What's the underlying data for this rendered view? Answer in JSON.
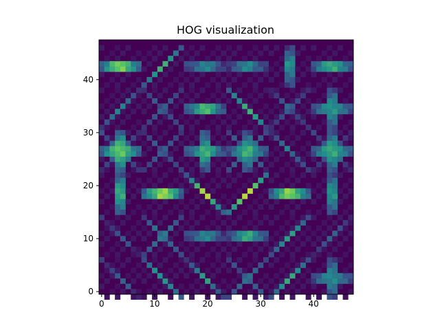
{
  "chart_data": {
    "type": "heatmap",
    "title": "HOG visualization",
    "xlabel": "",
    "ylabel": "",
    "grid": false,
    "colormap": "viridis",
    "background_color": "#440154",
    "rows": 48,
    "cols": 48,
    "x_ticks": [
      0,
      10,
      20,
      30,
      40
    ],
    "x_tick_labels": [
      "0",
      "10",
      "20",
      "30",
      "40"
    ],
    "y_ticks": [
      0,
      10,
      20,
      30,
      40
    ],
    "y_tick_labels": [
      "0",
      "10",
      "20",
      "30",
      "40"
    ],
    "xlim": [
      -0.5,
      47.5
    ],
    "ylim": [
      47.5,
      -0.5
    ],
    "cell_size": 8,
    "cells": [
      {
        "row": 0,
        "col": 0,
        "orientation": "diag-up",
        "strength": 0.25
      },
      {
        "row": 0,
        "col": 1,
        "orientation": "diag-up",
        "strength": 0.55
      },
      {
        "row": 0,
        "col": 2,
        "orientation": "diag-up",
        "strength": 0.5
      },
      {
        "row": 0,
        "col": 3,
        "orientation": "cross",
        "strength": 0.35
      },
      {
        "row": 0,
        "col": 4,
        "orientation": "diag-down",
        "strength": 0.6
      },
      {
        "row": 0,
        "col": 5,
        "orientation": "plus",
        "strength": 0.45
      },
      {
        "row": 1,
        "col": 0,
        "orientation": "diag-up",
        "strength": 0.2
      },
      {
        "row": 1,
        "col": 1,
        "orientation": "cross",
        "strength": 0.45
      },
      {
        "row": 1,
        "col": 2,
        "orientation": "horizontal",
        "strength": 0.4
      },
      {
        "row": 1,
        "col": 3,
        "orientation": "horizontal",
        "strength": 0.55
      },
      {
        "row": 1,
        "col": 4,
        "orientation": "diag-down",
        "strength": 0.55
      },
      {
        "row": 1,
        "col": 5,
        "orientation": "diag-down",
        "strength": 0.35
      },
      {
        "row": 2,
        "col": 0,
        "orientation": "vertical",
        "strength": 0.6
      },
      {
        "row": 2,
        "col": 1,
        "orientation": "horizontal",
        "strength": 0.85
      },
      {
        "row": 2,
        "col": 2,
        "orientation": "diag-up",
        "strength": 0.85
      },
      {
        "row": 2,
        "col": 3,
        "orientation": "diag-down",
        "strength": 0.85
      },
      {
        "row": 2,
        "col": 4,
        "orientation": "horizontal",
        "strength": 0.8
      },
      {
        "row": 2,
        "col": 5,
        "orientation": "vertical",
        "strength": 0.5
      },
      {
        "row": 3,
        "col": 0,
        "orientation": "star",
        "strength": 0.75
      },
      {
        "row": 3,
        "col": 1,
        "orientation": "cross",
        "strength": 0.3
      },
      {
        "row": 3,
        "col": 2,
        "orientation": "plus",
        "strength": 0.6
      },
      {
        "row": 3,
        "col": 3,
        "orientation": "star",
        "strength": 0.6
      },
      {
        "row": 3,
        "col": 4,
        "orientation": "diag-up",
        "strength": 0.35
      },
      {
        "row": 3,
        "col": 5,
        "orientation": "star",
        "strength": 0.6
      },
      {
        "row": 4,
        "col": 0,
        "orientation": "diag-down",
        "strength": 0.5
      },
      {
        "row": 4,
        "col": 1,
        "orientation": "cross",
        "strength": 0.3
      },
      {
        "row": 4,
        "col": 2,
        "orientation": "horizontal",
        "strength": 0.65
      },
      {
        "row": 4,
        "col": 3,
        "orientation": "diag-up",
        "strength": 0.65
      },
      {
        "row": 4,
        "col": 4,
        "orientation": "cross",
        "strength": 0.3
      },
      {
        "row": 4,
        "col": 5,
        "orientation": "plus",
        "strength": 0.5
      },
      {
        "row": 5,
        "col": 0,
        "orientation": "horizontal",
        "strength": 0.8
      },
      {
        "row": 5,
        "col": 1,
        "orientation": "diag-down",
        "strength": 0.6
      },
      {
        "row": 5,
        "col": 2,
        "orientation": "horizontal",
        "strength": 0.4
      },
      {
        "row": 5,
        "col": 3,
        "orientation": "horizontal",
        "strength": 0.4
      },
      {
        "row": 5,
        "col": 4,
        "orientation": "vertical",
        "strength": 0.45
      },
      {
        "row": 5,
        "col": 5,
        "orientation": "horizontal",
        "strength": 0.6
      }
    ]
  }
}
